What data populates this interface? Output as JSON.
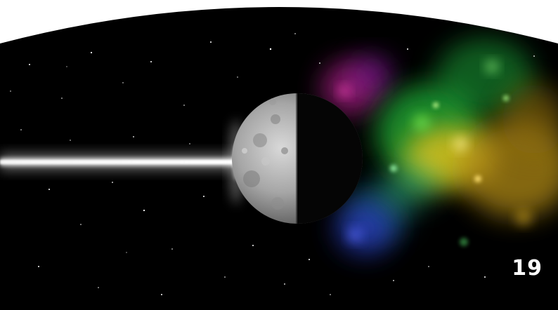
{
  "page": {
    "number": "19"
  },
  "illustration": {
    "subject": "cosmic-scene",
    "elements": [
      "light-beam",
      "half-lit-moon",
      "rainbow-nebula",
      "starfield"
    ],
    "colors": {
      "space": "#000000",
      "beam": "#ffffff",
      "moon_lit": "#b8b8b8",
      "nebula_magenta": "#b0208a",
      "nebula_green": "#22b53a",
      "nebula_yellow": "#e8c21a",
      "nebula_blue": "#2a3cc4",
      "page_background": "#ffffff"
    }
  }
}
